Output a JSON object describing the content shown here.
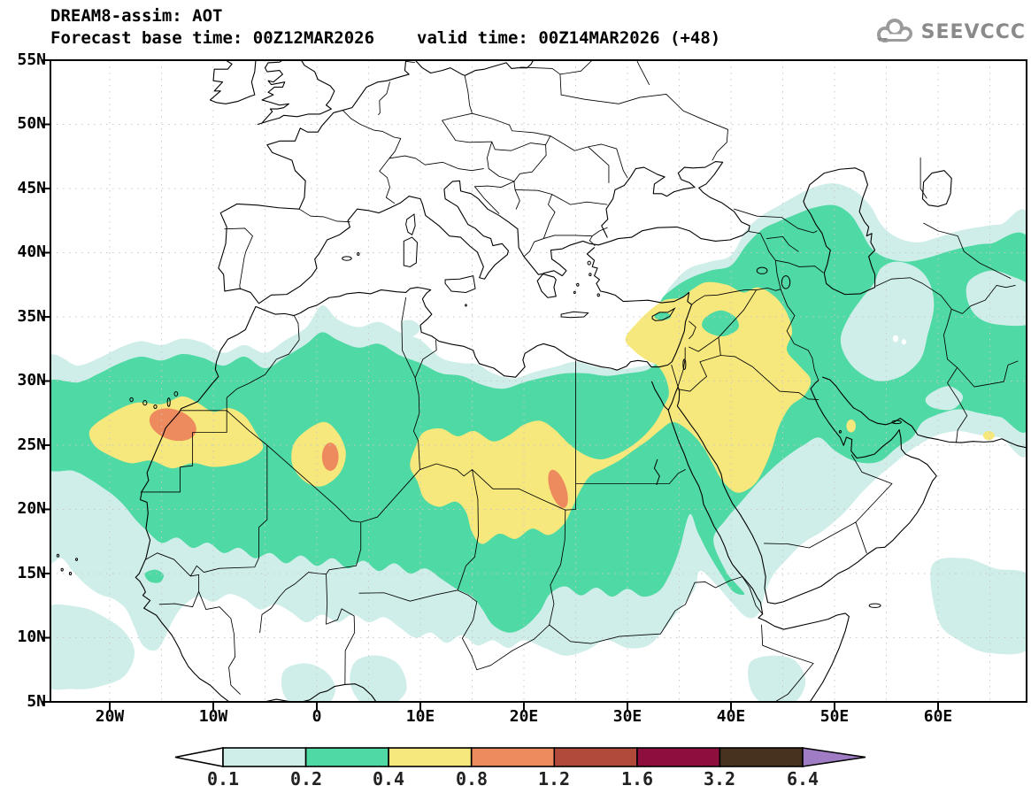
{
  "header": {
    "title": "DREAM8-assim: AOT",
    "forecast_base": "Forecast base time: 00Z12MAR2026",
    "valid": "valid time: 00Z14MAR2026 (+48)"
  },
  "logo": {
    "text": "SEEVCCC"
  },
  "map": {
    "lat_labels": [
      "55N",
      "50N",
      "45N",
      "40N",
      "35N",
      "30N",
      "25N",
      "20N",
      "15N",
      "10N",
      "5N"
    ],
    "lon_labels": [
      "20W",
      "10W",
      "0",
      "10E",
      "20E",
      "30E",
      "40E",
      "50E",
      "60E"
    ]
  },
  "colorbar": {
    "labels": [
      "0.1",
      "0.2",
      "0.4",
      "0.8",
      "1.2",
      "1.6",
      "3.2",
      "6.4"
    ],
    "segment_colors": [
      "#cfeee9",
      "#4fd9a4",
      "#f6e87c",
      "#ee8b5e",
      "#b24a3c",
      "#8e0f3d",
      "#46321f"
    ],
    "underflow_color": "#ffffff",
    "overflow_color": "#a07cc4",
    "grid_color": "#c8c8c8"
  },
  "chart_data": {
    "type": "heatmap",
    "title": "DREAM8-assim: AOT",
    "variable": "Aerosol Optical Thickness (AOT)",
    "model": "DREAM8-assim",
    "source": "SEEVCCC",
    "forecast_base_time": "00Z12MAR2026",
    "valid_time": "00Z14MAR2026",
    "lead_hours": 48,
    "lon_range_deg": [
      -25.7,
      68.5
    ],
    "lat_range_deg": [
      5,
      55
    ],
    "lon_ticks": [
      -20,
      -10,
      0,
      10,
      20,
      30,
      40,
      50,
      60
    ],
    "lat_ticks": [
      55,
      50,
      45,
      40,
      35,
      30,
      25,
      20,
      15,
      10,
      5
    ],
    "grid": "dotted 5-degree",
    "legend_position": "bottom",
    "contour_levels": [
      0.1,
      0.2,
      0.4,
      0.8,
      1.2,
      1.6,
      3.2,
      6.4
    ],
    "level_colors": [
      "#cfeee9",
      "#4fd9a4",
      "#f6e87c",
      "#ee8b5e",
      "#b24a3c",
      "#8e0f3d",
      "#46321f"
    ],
    "features": [
      {
        "name": "saharan-dust-band",
        "description": "AOT 0.2-0.4 band spanning 25W-65E roughly 10N-35N across the Sahara, Arabia and Middle East"
      },
      {
        "name": "yellow-core-west",
        "description": "AOT 0.4-0.8 over Western Sahara / Canary Islands region, 22W-6W, 23N-29N"
      },
      {
        "name": "yellow-core-algeria",
        "description": "AOT 0.4-0.8 near 0E, 22N-27N"
      },
      {
        "name": "yellow-core-libya-egypt",
        "description": "AOT 0.4-0.8 over S Libya / NW Chad / S Egypt, 10E-26E, 17N-27N"
      },
      {
        "name": "yellow-band-middle-east",
        "description": "AOT 0.4-0.8 over Levant, Syria, Iraq, NW Saudi Arabia, Cyprus, 30E-48E, 21N-38N"
      },
      {
        "name": "maximum-west-sahara",
        "lon": -14,
        "lat": 26.6,
        "value": "0.8-1.2"
      },
      {
        "name": "maximum-south-algeria",
        "lon": 1.3,
        "lat": 24.1,
        "value": "0.8-1.2"
      },
      {
        "name": "maximum-sw-egypt",
        "lon": 23.3,
        "lat": 21.6,
        "value": "0.8-1.2"
      },
      {
        "name": "secondary-band-north",
        "description": "AOT 0.1-0.4 over Turkey, Caucasus, Caspian Sea, Iran up to 45N"
      },
      {
        "name": "west-africa-patches",
        "description": "AOT 0.1-0.2 patches over Sahel, Gulf of Guinea and tropical Atlantic"
      }
    ]
  }
}
